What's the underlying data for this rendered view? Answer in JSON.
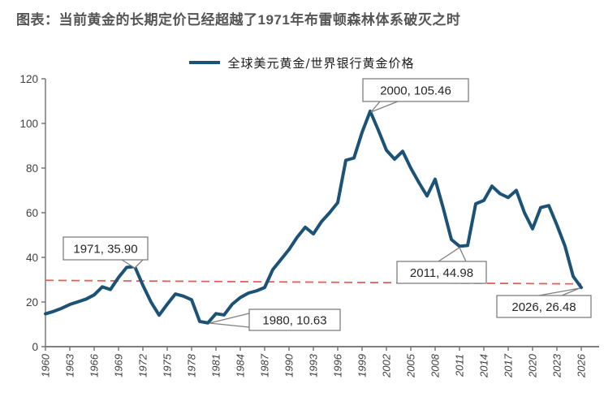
{
  "page": {
    "title": "图表：当前黄金的长期定价已经超越了1971年布雷顿森林体系破灭之时"
  },
  "legend": {
    "label": "全球美元黄金/世界银行黄金价格",
    "line_color": "#1B5276"
  },
  "chart_data": {
    "type": "line",
    "title": "图表：当前黄金的长期定价已经超越了1971年布雷顿森林体系破灭之时",
    "xlabel": "",
    "ylabel": "",
    "ylim": [
      0,
      120
    ],
    "y_ticks": [
      0,
      20,
      40,
      60,
      80,
      100,
      120
    ],
    "x_range": [
      1960,
      2026
    ],
    "x_tick_labels": [
      "1960",
      "1963",
      "1966",
      "1969",
      "1972",
      "1975",
      "1978",
      "1981",
      "1984",
      "1987",
      "1990",
      "1993",
      "1996",
      "1999",
      "2002",
      "2005",
      "2008",
      "2011",
      "2014",
      "2017",
      "2020",
      "2023",
      "2026"
    ],
    "grid": false,
    "legend_position": "top",
    "series": [
      {
        "name": "全球美元黄金/世界银行黄金价格",
        "color": "#1B5276",
        "start_year": 1960,
        "step": 1,
        "values": [
          14.7,
          15.8,
          17.2,
          18.9,
          20.1,
          21.3,
          23.2,
          26.8,
          25.6,
          31.0,
          35.5,
          35.9,
          27.5,
          20.0,
          14.1,
          19.0,
          23.6,
          22.6,
          21.0,
          11.3,
          10.63,
          14.8,
          14.2,
          19.0,
          22.0,
          24.0,
          25.0,
          26.5,
          34.5,
          39.0,
          43.5,
          49.0,
          53.5,
          50.5,
          56.0,
          60.0,
          64.5,
          83.5,
          84.5,
          96.0,
          105.46,
          97.0,
          88.0,
          84.0,
          87.5,
          80.0,
          73.5,
          67.5,
          75.0,
          62.0,
          48.0,
          44.98,
          45.3,
          64.0,
          65.5,
          71.9,
          68.5,
          66.8,
          70.0,
          60.0,
          52.8,
          62.3,
          63.2,
          54.5,
          45.0,
          31.5,
          26.48
        ]
      }
    ],
    "reference_line": {
      "style": "dashed",
      "color": "#E0605C",
      "points": [
        {
          "year": 1960,
          "value": 29.7
        },
        {
          "year": 2026,
          "value": 28.1
        }
      ]
    },
    "annotations": [
      {
        "label": "1971, 35.90",
        "year": 1971,
        "value": 35.9
      },
      {
        "label": "1980, 10.63",
        "year": 1980,
        "value": 10.63
      },
      {
        "label": "2000, 105.46",
        "year": 2000,
        "value": 105.46
      },
      {
        "label": "2011, 44.98",
        "year": 2011,
        "value": 44.98
      },
      {
        "label": "2026, 26.48",
        "year": 2026,
        "value": 26.48
      }
    ],
    "colors": {
      "series_line": "#1B5276",
      "reference_line": "#E0605C",
      "axis": "#6E6E6E",
      "title_text": "#555555",
      "callout_border": "#7F7F7F"
    }
  }
}
